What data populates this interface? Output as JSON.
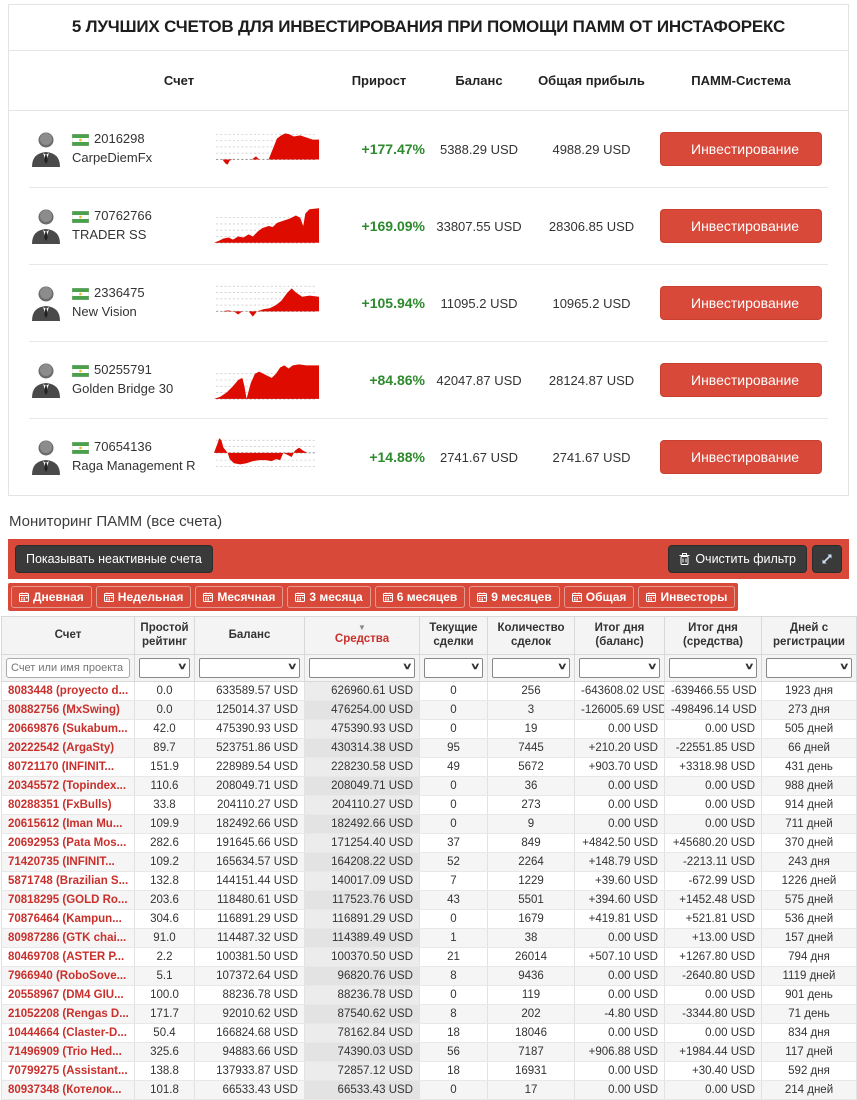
{
  "colors": {
    "red_accent": "#d8493a",
    "dark_button": "#3a3a3a",
    "green_positive": "#2d8a2d",
    "account_link_red": "#c9302c",
    "spark_red": "#dd0b00"
  },
  "icons": {
    "avatar": "businessman-avatar",
    "flag": "country-flag-icon",
    "tab": "calendar-icon",
    "clear": "trash-icon",
    "expand": "expand-icon",
    "dropdown": "chevron-down-icon",
    "sort": "sort-desc-icon"
  },
  "top_section": {
    "title": "5 ЛУЧШИХ СЧЕТОВ ДЛЯ ИНВЕСТИРОВАНИЯ ПРИ ПОМОЩИ ПАММ ОТ ИНСТАФОРЕКС",
    "columns": [
      "Счет",
      "Прирост",
      "Баланс",
      "Общая прибыль",
      "ПАММ-Система"
    ],
    "invest_label": "Инвестирование",
    "accounts": [
      {
        "number": "2016298",
        "name": "CarpeDiemFx",
        "growth": "+177.47%",
        "balance": "5388.29 USD",
        "profit": "4988.29 USD"
      },
      {
        "number": "70762766",
        "name": "TRADER SS",
        "growth": "+169.09%",
        "balance": "33807.55 USD",
        "profit": "28306.85 USD"
      },
      {
        "number": "2336475",
        "name": "New Vision",
        "growth": "+105.94%",
        "balance": "11095.2 USD",
        "profit": "10965.2 USD"
      },
      {
        "number": "50255791",
        "name": "Golden Bridge 30",
        "growth": "+84.86%",
        "balance": "42047.87 USD",
        "profit": "28124.87 USD"
      },
      {
        "number": "70654136",
        "name": "Raga Management R",
        "growth": "+14.88%",
        "balance": "2741.67 USD",
        "profit": "2741.67 USD"
      }
    ]
  },
  "chart_data": {
    "type": "area",
    "note": "red sparkline equity curves, unlabeled axes, dashed gridlines; points are normalized [x,y] in a 100x44 viewbox, y down; baseline = dashed zero line",
    "series": [
      {
        "name": "CarpeDiemFx",
        "baseline": 32,
        "points": [
          [
            0,
            32
          ],
          [
            8,
            32
          ],
          [
            11,
            36
          ],
          [
            13,
            37
          ],
          [
            15,
            33
          ],
          [
            18,
            32
          ],
          [
            30,
            32
          ],
          [
            36,
            32
          ],
          [
            40,
            29
          ],
          [
            43,
            32
          ],
          [
            52,
            32
          ],
          [
            56,
            22
          ],
          [
            60,
            12
          ],
          [
            64,
            9
          ],
          [
            68,
            7
          ],
          [
            72,
            8
          ],
          [
            76,
            10
          ],
          [
            82,
            9
          ],
          [
            88,
            11
          ],
          [
            94,
            13
          ],
          [
            100,
            13
          ]
        ]
      },
      {
        "name": "TRADER SS",
        "baseline": 38,
        "points": [
          [
            0,
            38
          ],
          [
            5,
            36
          ],
          [
            9,
            34
          ],
          [
            14,
            33
          ],
          [
            18,
            35
          ],
          [
            23,
            32
          ],
          [
            28,
            33
          ],
          [
            33,
            30
          ],
          [
            37,
            32
          ],
          [
            42,
            27
          ],
          [
            46,
            24
          ],
          [
            52,
            22
          ],
          [
            56,
            23
          ],
          [
            60,
            19
          ],
          [
            66,
            17
          ],
          [
            72,
            15
          ],
          [
            78,
            12
          ],
          [
            82,
            14
          ],
          [
            85,
            22
          ],
          [
            87,
            10
          ],
          [
            91,
            6
          ],
          [
            100,
            5
          ]
        ]
      },
      {
        "name": "New Vision",
        "baseline": 30,
        "points": [
          [
            0,
            30
          ],
          [
            8,
            30
          ],
          [
            13,
            29
          ],
          [
            19,
            30
          ],
          [
            23,
            33
          ],
          [
            27,
            30
          ],
          [
            33,
            30
          ],
          [
            37,
            35
          ],
          [
            41,
            30
          ],
          [
            47,
            28
          ],
          [
            53,
            27
          ],
          [
            59,
            24
          ],
          [
            64,
            20
          ],
          [
            70,
            12
          ],
          [
            74,
            8
          ],
          [
            78,
            12
          ],
          [
            84,
            16
          ],
          [
            91,
            15
          ],
          [
            100,
            16
          ]
        ]
      },
      {
        "name": "Golden Bridge 30",
        "baseline": 40,
        "points": [
          [
            0,
            40
          ],
          [
            6,
            38
          ],
          [
            12,
            34
          ],
          [
            18,
            28
          ],
          [
            23,
            22
          ],
          [
            27,
            20
          ],
          [
            29,
            28
          ],
          [
            31,
            40
          ],
          [
            35,
            25
          ],
          [
            39,
            16
          ],
          [
            43,
            14
          ],
          [
            47,
            16
          ],
          [
            51,
            18
          ],
          [
            55,
            20
          ],
          [
            59,
            16
          ],
          [
            63,
            10
          ],
          [
            67,
            8
          ],
          [
            71,
            11
          ],
          [
            75,
            8
          ],
          [
            81,
            7
          ],
          [
            88,
            8
          ],
          [
            100,
            8
          ]
        ]
      },
      {
        "name": "Raga Management R",
        "baseline": 18,
        "points": [
          [
            0,
            18
          ],
          [
            3,
            10
          ],
          [
            5,
            4
          ],
          [
            7,
            6
          ],
          [
            9,
            13
          ],
          [
            13,
            18
          ],
          [
            15,
            24
          ],
          [
            19,
            28
          ],
          [
            25,
            29
          ],
          [
            31,
            28
          ],
          [
            37,
            26
          ],
          [
            43,
            25
          ],
          [
            49,
            25
          ],
          [
            55,
            26
          ],
          [
            59,
            24
          ],
          [
            63,
            25
          ],
          [
            66,
            18
          ],
          [
            70,
            20
          ],
          [
            74,
            22
          ],
          [
            77,
            16
          ],
          [
            81,
            13
          ],
          [
            85,
            16
          ],
          [
            89,
            18
          ],
          [
            100,
            18
          ]
        ]
      }
    ]
  },
  "monitoring": {
    "title": "Мониторинг ПАММ (все счета)",
    "toolbar": {
      "show_inactive": "Показывать неактивные счета",
      "clear_filter": "Очистить фильтр"
    },
    "tabs": [
      "Дневная",
      "Недельная",
      "Месячная",
      "3 месяца",
      "6 месяцев",
      "9 месяцев",
      "Общая",
      "Инвесторы"
    ],
    "table": {
      "columns": [
        "Счет",
        "Простой рейтинг",
        "Баланс",
        "Средства",
        "Текущие сделки",
        "Количество сделок",
        "Итог дня (баланс)",
        "Итог дня (средства)",
        "Дней с регистрации"
      ],
      "sorted_column": "Средства",
      "filter_placeholder": "Счет или имя проекта",
      "rows": [
        [
          "8083448 (proyecto d...",
          "0.0",
          "633589.57 USD",
          "626960.61 USD",
          "0",
          "256",
          "-643608.02 USD",
          "-639466.55 USD",
          "1923 дня"
        ],
        [
          "80882756 (MxSwing)",
          "0.0",
          "125014.37 USD",
          "476254.00 USD",
          "0",
          "3",
          "-126005.69 USD",
          "-498496.14 USD",
          "273 дня"
        ],
        [
          "20669876 (Sukabum...",
          "42.0",
          "475390.93 USD",
          "475390.93 USD",
          "0",
          "19",
          "0.00 USD",
          "0.00 USD",
          "505 дней"
        ],
        [
          "20222542 (ArgaSty)",
          "89.7",
          "523751.86 USD",
          "430314.38 USD",
          "95",
          "7445",
          "+210.20 USD",
          "-22551.85 USD",
          "66 дней"
        ],
        [
          "80721170 (INFINIT...",
          "151.9",
          "228989.54 USD",
          "228230.58 USD",
          "49",
          "5672",
          "+903.70 USD",
          "+3318.98 USD",
          "431 день"
        ],
        [
          "20345572 (Topindex...",
          "110.6",
          "208049.71 USD",
          "208049.71 USD",
          "0",
          "36",
          "0.00 USD",
          "0.00 USD",
          "988 дней"
        ],
        [
          "80288351 (FxBulls)",
          "33.8",
          "204110.27 USD",
          "204110.27 USD",
          "0",
          "273",
          "0.00 USD",
          "0.00 USD",
          "914 дней"
        ],
        [
          "20615612 (Iman Mu...",
          "109.9",
          "182492.66 USD",
          "182492.66 USD",
          "0",
          "9",
          "0.00 USD",
          "0.00 USD",
          "711 дней"
        ],
        [
          "20692953 (Pata Mos...",
          "282.6",
          "191645.66 USD",
          "171254.40 USD",
          "37",
          "849",
          "+4842.50 USD",
          "+45680.20 USD",
          "370 дней"
        ],
        [
          "71420735 (INFINIT...",
          "109.2",
          "165634.57 USD",
          "164208.22 USD",
          "52",
          "2264",
          "+148.79 USD",
          "-2213.11 USD",
          "243 дня"
        ],
        [
          "5871748 (Brazilian S...",
          "132.8",
          "144151.44 USD",
          "140017.09 USD",
          "7",
          "1229",
          "+39.60 USD",
          "-672.99 USD",
          "1226 дней"
        ],
        [
          "70818295 (GOLD Ro...",
          "203.6",
          "118480.61 USD",
          "117523.76 USD",
          "43",
          "5501",
          "+394.60 USD",
          "+1452.48 USD",
          "575 дней"
        ],
        [
          "70876464 (Kampun...",
          "304.6",
          "116891.29 USD",
          "116891.29 USD",
          "0",
          "1679",
          "+419.81 USD",
          "+521.81 USD",
          "536 дней"
        ],
        [
          "80987286 (GTK chai...",
          "91.0",
          "114487.32 USD",
          "114389.49 USD",
          "1",
          "38",
          "0.00 USD",
          "+13.00 USD",
          "157 дней"
        ],
        [
          "80469708 (ASTER P...",
          "2.2",
          "100381.50 USD",
          "100370.50 USD",
          "21",
          "26014",
          "+507.10 USD",
          "+1267.80 USD",
          "794 дня"
        ],
        [
          "7966940 (RoboSove...",
          "5.1",
          "107372.64 USD",
          "96820.76 USD",
          "8",
          "9436",
          "0.00 USD",
          "-2640.80 USD",
          "1119 дней"
        ],
        [
          "20558967 (DM4 GIU...",
          "100.0",
          "88236.78 USD",
          "88236.78 USD",
          "0",
          "119",
          "0.00 USD",
          "0.00 USD",
          "901 день"
        ],
        [
          "21052208 (Rengas D...",
          "171.7",
          "92010.62 USD",
          "87540.62 USD",
          "8",
          "202",
          "-4.80 USD",
          "-3344.80 USD",
          "71 день"
        ],
        [
          "10444664 (Claster-D...",
          "50.4",
          "166824.68 USD",
          "78162.84 USD",
          "18",
          "18046",
          "0.00 USD",
          "0.00 USD",
          "834 дня"
        ],
        [
          "71496909 (Trio Hed...",
          "325.6",
          "94883.66 USD",
          "74390.03 USD",
          "56",
          "7187",
          "+906.88 USD",
          "+1984.44 USD",
          "117 дней"
        ],
        [
          "70799275 (Assistant...",
          "138.8",
          "137933.87 USD",
          "72857.12 USD",
          "18",
          "16931",
          "0.00 USD",
          "+30.40 USD",
          "592 дня"
        ],
        [
          "80937348 (Котелок...",
          "101.8",
          "66533.43 USD",
          "66533.43 USD",
          "0",
          "17",
          "0.00 USD",
          "0.00 USD",
          "214 дней"
        ]
      ]
    }
  }
}
